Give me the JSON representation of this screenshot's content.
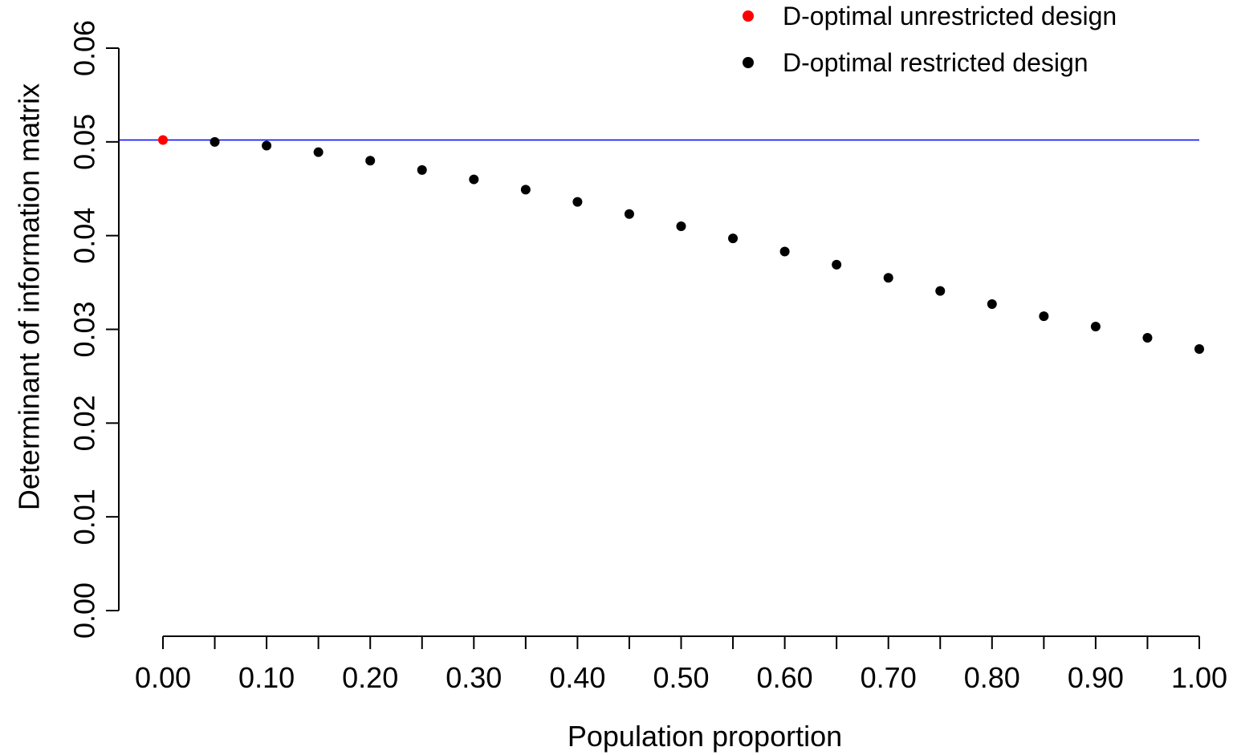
{
  "chart_data": {
    "type": "scatter",
    "xlabel": "Population proportion",
    "ylabel": "Determinant of information matrix",
    "xlim": [
      0,
      1
    ],
    "ylim": [
      0,
      0.06
    ],
    "x_ticks": [
      "0.00",
      "0.10",
      "0.20",
      "0.30",
      "0.40",
      "0.50",
      "0.60",
      "0.70",
      "0.80",
      "0.90",
      "1.00"
    ],
    "y_ticks": [
      "0.00",
      "0.01",
      "0.02",
      "0.03",
      "0.04",
      "0.05",
      "0.06"
    ],
    "grid": false,
    "legend_position": "top-right",
    "reference_line": {
      "y": 0.0502,
      "color": "#0000ff"
    },
    "series": [
      {
        "name": "D-optimal unrestricted design",
        "color": "#ff0000",
        "x": [
          0.0
        ],
        "y": [
          0.0502
        ]
      },
      {
        "name": "D-optimal restricted design",
        "color": "#000000",
        "x": [
          0.05,
          0.1,
          0.15,
          0.2,
          0.25,
          0.3,
          0.35,
          0.4,
          0.45,
          0.5,
          0.55,
          0.6,
          0.65,
          0.7,
          0.75,
          0.8,
          0.85,
          0.9,
          0.95,
          1.0
        ],
        "y": [
          0.05,
          0.0496,
          0.0489,
          0.048,
          0.047,
          0.046,
          0.0449,
          0.0436,
          0.0423,
          0.041,
          0.0397,
          0.0383,
          0.0369,
          0.0355,
          0.0341,
          0.0327,
          0.0314,
          0.0303,
          0.0291,
          0.0279
        ]
      }
    ]
  }
}
